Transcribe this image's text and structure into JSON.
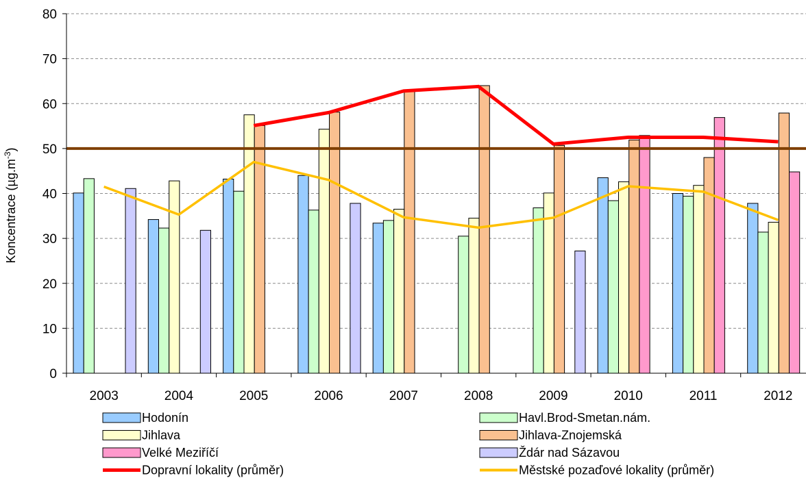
{
  "chart_data": {
    "type": "bar",
    "title": "",
    "xlabel": "",
    "ylabel": "Koncentrace (µg.m",
    "ylabel_sup": "-3",
    "ylabel_close": ")",
    "ylim": [
      0,
      80
    ],
    "yticks": [
      "0",
      "10",
      "20",
      "30",
      "40",
      "50",
      "60",
      "70",
      "80"
    ],
    "grid": true,
    "legend_position": "bottom",
    "categories": [
      "2003",
      "2004",
      "2005",
      "2006",
      "2007",
      "2008",
      "2009",
      "2010",
      "2011",
      "2012"
    ],
    "series": [
      {
        "name": "Hodonín",
        "color": "#99ccff",
        "values": [
          40.1,
          34.2,
          43.2,
          44.0,
          33.4,
          null,
          null,
          43.5,
          40.0,
          37.8
        ]
      },
      {
        "name": "Havl.Brod-Smetan.nám.",
        "color": "#ccffcc",
        "values": [
          43.3,
          32.3,
          40.5,
          36.3,
          34.0,
          30.5,
          36.8,
          38.4,
          39.4,
          31.4
        ]
      },
      {
        "name": "Jihlava",
        "color": "#ffffcc",
        "values": [
          null,
          42.8,
          57.5,
          54.3,
          36.5,
          34.5,
          40.1,
          42.6,
          41.8,
          33.6
        ]
      },
      {
        "name": "Jihlava-Znojemská",
        "color": "#fac090",
        "values": [
          null,
          null,
          55.1,
          58.1,
          63.0,
          64.0,
          50.7,
          51.9,
          48.0,
          57.9
        ]
      },
      {
        "name": "Velké Meziříčí",
        "color": "#ff99cc",
        "values": [
          null,
          null,
          null,
          null,
          null,
          null,
          null,
          52.9,
          56.9,
          44.8
        ]
      },
      {
        "name": "Ždár nad Sázavou",
        "color": "#ccccff",
        "values": [
          41.1,
          31.8,
          null,
          37.8,
          null,
          null,
          27.2,
          null,
          null,
          null
        ]
      }
    ],
    "lines": [
      {
        "name": "Dopravní lokality (průměr)",
        "color": "#ff0000",
        "values": [
          null,
          null,
          55.1,
          58.0,
          62.8,
          63.8,
          51.0,
          52.5,
          52.5,
          51.5
        ]
      },
      {
        "name": "Městské pozaďové lokality (průměr)",
        "color": "#ffc000",
        "values": [
          41.5,
          35.3,
          47.0,
          43.0,
          34.7,
          32.4,
          34.6,
          41.6,
          40.4,
          34.1
        ]
      }
    ],
    "limit_line": {
      "value": 50,
      "color": "#7f3f00"
    }
  }
}
